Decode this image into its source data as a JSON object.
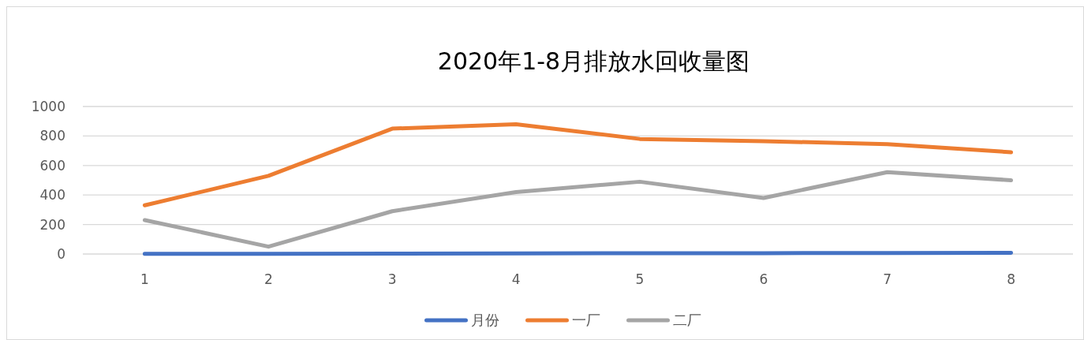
{
  "chart_data": {
    "type": "line",
    "title": "2020年1-8月排放水回收量图",
    "categories": [
      "1",
      "2",
      "3",
      "4",
      "5",
      "6",
      "7",
      "8"
    ],
    "series": [
      {
        "name": "月份",
        "color": "#4472c4",
        "values": [
          1,
          2,
          3,
          4,
          5,
          6,
          7,
          8
        ]
      },
      {
        "name": "一厂",
        "color": "#ed7d31",
        "values": [
          330,
          530,
          850,
          880,
          780,
          765,
          745,
          690
        ]
      },
      {
        "name": "二厂",
        "color": "#a5a5a5",
        "values": [
          230,
          50,
          290,
          420,
          490,
          380,
          555,
          500
        ]
      }
    ],
    "ylim": [
      0,
      1000
    ],
    "yticks": [
      0,
      200,
      400,
      600,
      800,
      1000
    ],
    "grid": "y",
    "legend": "bottom",
    "marker": "none",
    "line_style": "solid"
  }
}
